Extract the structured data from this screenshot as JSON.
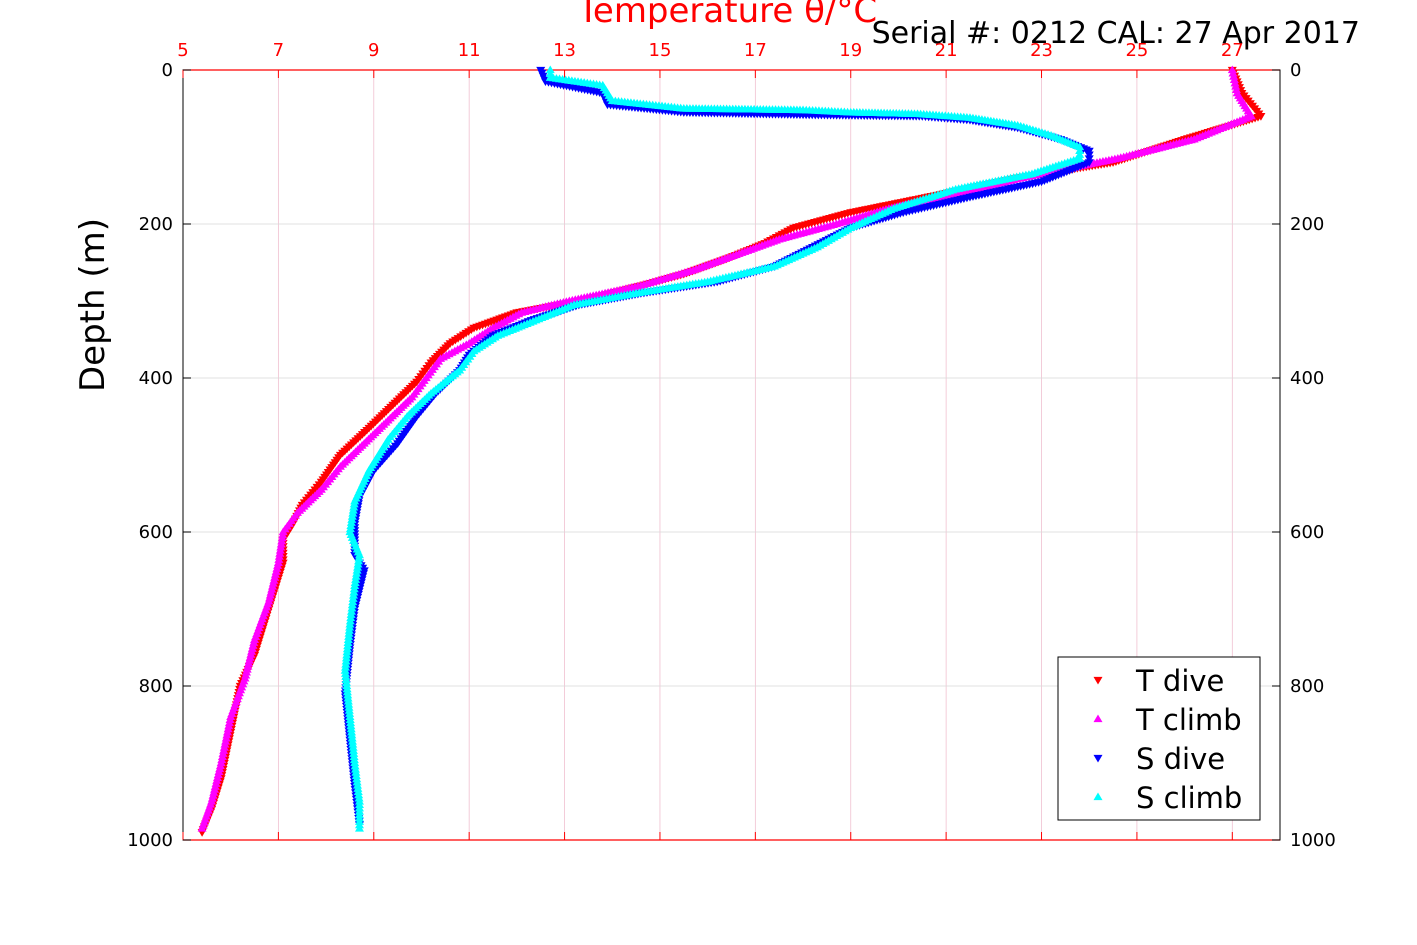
{
  "chart_data": {
    "type": "scatter",
    "title": "Serial #: 0212  CAL: 27 Apr 2017",
    "xlabel": "Temperature θ/°C",
    "ylabel": "Depth (m)",
    "xlim": [
      5,
      28
    ],
    "ylim": [
      0,
      1000
    ],
    "y_reversed": true,
    "x_axis_position": "top",
    "x_ticks": [
      "5",
      "7",
      "9",
      "11",
      "13",
      "15",
      "17",
      "19",
      "21",
      "23",
      "25",
      "27"
    ],
    "y_ticks": [
      "0",
      "200",
      "400",
      "600",
      "800",
      "1000"
    ],
    "grid": true,
    "legend_position": "bottom-right",
    "colors": {
      "T dive": "#ff0000",
      "T climb": "#ff00ff",
      "S dive": "#0000ff",
      "S climb": "#00ffff"
    },
    "series": [
      {
        "name": "T dive",
        "marker": "triangle-down",
        "points": [
          [
            27.0,
            0
          ],
          [
            27.2,
            30
          ],
          [
            27.6,
            60
          ],
          [
            26.0,
            90
          ],
          [
            24.5,
            120
          ],
          [
            22.5,
            140
          ],
          [
            21.0,
            160
          ],
          [
            19.0,
            185
          ],
          [
            17.8,
            205
          ],
          [
            17.2,
            225
          ],
          [
            16.4,
            245
          ],
          [
            15.5,
            265
          ],
          [
            14.6,
            280
          ],
          [
            13.3,
            300
          ],
          [
            12.0,
            315
          ],
          [
            11.1,
            335
          ],
          [
            10.6,
            355
          ],
          [
            10.2,
            380
          ],
          [
            9.9,
            405
          ],
          [
            9.4,
            435
          ],
          [
            8.9,
            465
          ],
          [
            8.3,
            500
          ],
          [
            7.9,
            535
          ],
          [
            7.5,
            565
          ],
          [
            7.3,
            590
          ],
          [
            7.1,
            610
          ],
          [
            7.1,
            640
          ],
          [
            6.9,
            680
          ],
          [
            6.7,
            720
          ],
          [
            6.5,
            760
          ],
          [
            6.2,
            800
          ],
          [
            6.0,
            860
          ],
          [
            5.8,
            920
          ],
          [
            5.6,
            960
          ],
          [
            5.4,
            990
          ]
        ]
      },
      {
        "name": "T climb",
        "marker": "triangle-up",
        "points": [
          [
            27.0,
            0
          ],
          [
            27.1,
            30
          ],
          [
            27.4,
            60
          ],
          [
            26.2,
            90
          ],
          [
            24.6,
            115
          ],
          [
            22.6,
            140
          ],
          [
            21.3,
            160
          ],
          [
            19.8,
            180
          ],
          [
            18.7,
            200
          ],
          [
            17.5,
            220
          ],
          [
            16.6,
            240
          ],
          [
            15.7,
            260
          ],
          [
            14.6,
            280
          ],
          [
            13.1,
            300
          ],
          [
            12.1,
            315
          ],
          [
            11.5,
            335
          ],
          [
            11.0,
            355
          ],
          [
            10.4,
            375
          ],
          [
            10.1,
            400
          ],
          [
            9.8,
            425
          ],
          [
            9.3,
            455
          ],
          [
            8.8,
            485
          ],
          [
            8.3,
            515
          ],
          [
            7.9,
            545
          ],
          [
            7.4,
            575
          ],
          [
            7.1,
            600
          ],
          [
            7.0,
            640
          ],
          [
            6.8,
            690
          ],
          [
            6.5,
            740
          ],
          [
            6.3,
            790
          ],
          [
            6.0,
            840
          ],
          [
            5.8,
            900
          ],
          [
            5.6,
            950
          ],
          [
            5.4,
            985
          ]
        ]
      },
      {
        "name": "S dive",
        "marker": "triangle-down",
        "points": [
          [
            12.5,
            0
          ],
          [
            12.6,
            15
          ],
          [
            13.8,
            30
          ],
          [
            13.9,
            45
          ],
          [
            15.5,
            55
          ],
          [
            18.0,
            58
          ],
          [
            20.5,
            60
          ],
          [
            21.5,
            65
          ],
          [
            22.5,
            75
          ],
          [
            23.4,
            90
          ],
          [
            24.0,
            105
          ],
          [
            24.0,
            120
          ],
          [
            23.0,
            145
          ],
          [
            21.5,
            165
          ],
          [
            20.1,
            185
          ],
          [
            19.0,
            205
          ],
          [
            18.2,
            230
          ],
          [
            17.4,
            255
          ],
          [
            16.2,
            275
          ],
          [
            14.6,
            290
          ],
          [
            13.3,
            305
          ],
          [
            12.3,
            325
          ],
          [
            11.5,
            345
          ],
          [
            11.0,
            370
          ],
          [
            10.8,
            390
          ],
          [
            10.3,
            420
          ],
          [
            9.9,
            450
          ],
          [
            9.5,
            485
          ],
          [
            9.0,
            520
          ],
          [
            8.7,
            555
          ],
          [
            8.6,
            590
          ],
          [
            8.6,
            630
          ],
          [
            8.8,
            650
          ],
          [
            8.6,
            700
          ],
          [
            8.5,
            750
          ],
          [
            8.4,
            810
          ],
          [
            8.5,
            870
          ],
          [
            8.6,
            930
          ],
          [
            8.7,
            980
          ]
        ]
      },
      {
        "name": "S climb",
        "marker": "triangle-up",
        "points": [
          [
            12.7,
            0
          ],
          [
            12.7,
            10
          ],
          [
            13.8,
            20
          ],
          [
            14.0,
            40
          ],
          [
            15.5,
            50
          ],
          [
            18.0,
            52
          ],
          [
            19.0,
            55
          ],
          [
            20.4,
            57
          ],
          [
            21.5,
            62
          ],
          [
            22.5,
            72
          ],
          [
            23.2,
            85
          ],
          [
            23.8,
            100
          ],
          [
            23.8,
            115
          ],
          [
            22.8,
            135
          ],
          [
            21.2,
            155
          ],
          [
            19.9,
            180
          ],
          [
            19.0,
            205
          ],
          [
            18.3,
            230
          ],
          [
            17.4,
            255
          ],
          [
            16.0,
            275
          ],
          [
            14.5,
            290
          ],
          [
            13.2,
            305
          ],
          [
            12.4,
            325
          ],
          [
            11.6,
            345
          ],
          [
            11.1,
            365
          ],
          [
            10.8,
            390
          ],
          [
            10.2,
            420
          ],
          [
            9.7,
            450
          ],
          [
            9.3,
            480
          ],
          [
            8.9,
            520
          ],
          [
            8.6,
            560
          ],
          [
            8.5,
            600
          ],
          [
            8.7,
            630
          ],
          [
            8.6,
            670
          ],
          [
            8.5,
            720
          ],
          [
            8.4,
            780
          ],
          [
            8.5,
            840
          ],
          [
            8.6,
            900
          ],
          [
            8.7,
            950
          ],
          [
            8.7,
            985
          ]
        ]
      }
    ]
  }
}
